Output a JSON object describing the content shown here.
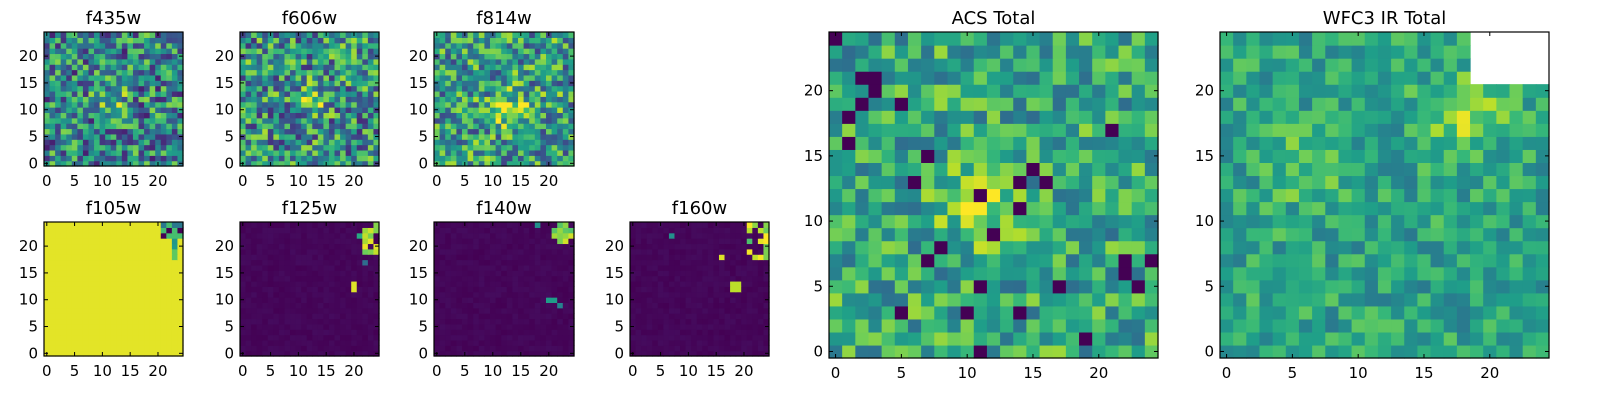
{
  "figure": {
    "panels": [
      {
        "id": "f435w",
        "title": "f435w",
        "xticks": [
          "0",
          "5",
          "10",
          "15",
          "20"
        ],
        "yticks": [
          "0",
          "5",
          "10",
          "15",
          "20"
        ]
      },
      {
        "id": "f606w",
        "title": "f606w",
        "xticks": [
          "0",
          "5",
          "10",
          "15",
          "20"
        ],
        "yticks": [
          "0",
          "5",
          "10",
          "15",
          "20"
        ]
      },
      {
        "id": "f814w",
        "title": "f814w",
        "xticks": [
          "0",
          "5",
          "10",
          "15",
          "20"
        ],
        "yticks": [
          "0",
          "5",
          "10",
          "15",
          "20"
        ]
      },
      {
        "id": "f105w",
        "title": "f105w",
        "xticks": [
          "0",
          "5",
          "10",
          "15",
          "20"
        ],
        "yticks": [
          "0",
          "5",
          "10",
          "15",
          "20"
        ]
      },
      {
        "id": "f125w",
        "title": "f125w",
        "xticks": [
          "0",
          "5",
          "10",
          "15",
          "20"
        ],
        "yticks": [
          "0",
          "5",
          "10",
          "15",
          "20"
        ]
      },
      {
        "id": "f140w",
        "title": "f140w",
        "xticks": [
          "0",
          "5",
          "10",
          "15",
          "20"
        ],
        "yticks": [
          "0",
          "5",
          "10",
          "15",
          "20"
        ]
      },
      {
        "id": "f160w",
        "title": "f160w",
        "xticks": [
          "0",
          "5",
          "10",
          "15",
          "20"
        ],
        "yticks": [
          "0",
          "5",
          "10",
          "15",
          "20"
        ]
      },
      {
        "id": "acs_total",
        "title": "ACS Total",
        "xticks": [
          "0",
          "5",
          "10",
          "15",
          "20"
        ],
        "yticks": [
          "0",
          "5",
          "10",
          "15",
          "20"
        ]
      },
      {
        "id": "wfc3_total",
        "title": "WFC3 IR Total",
        "xticks": [
          "0",
          "5",
          "10",
          "15",
          "20"
        ],
        "yticks": [
          "0",
          "5",
          "10",
          "15",
          "20"
        ]
      }
    ]
  },
  "chart_data": [
    {
      "type": "heatmap",
      "title": "f435w",
      "grid_size": [
        25,
        25
      ],
      "xlim": [
        -0.5,
        24.5
      ],
      "ylim": [
        -0.5,
        24.5
      ],
      "colormap": "viridis",
      "pattern": "noise"
    },
    {
      "type": "heatmap",
      "title": "f606w",
      "grid_size": [
        25,
        25
      ],
      "xlim": [
        -0.5,
        24.5
      ],
      "ylim": [
        -0.5,
        24.5
      ],
      "colormap": "viridis",
      "pattern": "noise with bright blob near (12, 12)"
    },
    {
      "type": "heatmap",
      "title": "f814w",
      "grid_size": [
        25,
        25
      ],
      "xlim": [
        -0.5,
        24.5
      ],
      "ylim": [
        -0.5,
        24.5
      ],
      "colormap": "viridis",
      "pattern": "noise with bright blob near (13, 10)"
    },
    {
      "type": "heatmap",
      "title": "f105w",
      "grid_size": [
        25,
        25
      ],
      "xlim": [
        -0.5,
        24.5
      ],
      "ylim": [
        -0.5,
        24.5
      ],
      "colormap": "viridis",
      "pattern": "uniform yellow, mixed pixels in top-right corner"
    },
    {
      "type": "heatmap",
      "title": "f125w",
      "grid_size": [
        25,
        25
      ],
      "xlim": [
        -0.5,
        24.5
      ],
      "ylim": [
        -0.5,
        24.5
      ],
      "colormap": "viridis",
      "pattern": "uniform dark, bright pixels in top-right corner and near (20, 12)"
    },
    {
      "type": "heatmap",
      "title": "f140w",
      "grid_size": [
        25,
        25
      ],
      "xlim": [
        -0.5,
        24.5
      ],
      "ylim": [
        -0.5,
        24.5
      ],
      "colormap": "viridis",
      "pattern": "uniform dark, bright pixels in top-right corner and near (22, 9)"
    },
    {
      "type": "heatmap",
      "title": "f160w",
      "grid_size": [
        25,
        25
      ],
      "xlim": [
        -0.5,
        24.5
      ],
      "ylim": [
        -0.5,
        24.5
      ],
      "colormap": "viridis",
      "pattern": "uniform dark, bright pixels in top-right corner and near (18, 12)"
    },
    {
      "type": "heatmap",
      "title": "ACS Total",
      "grid_size": [
        25,
        25
      ],
      "xlim": [
        -0.5,
        24.5
      ],
      "ylim": [
        -0.5,
        24.5
      ],
      "colormap": "viridis",
      "pattern": "green noise with bright blob near (11, 11)"
    },
    {
      "type": "heatmap",
      "title": "WFC3 IR Total",
      "grid_size": [
        25,
        25
      ],
      "xlim": [
        -0.5,
        24.5
      ],
      "ylim": [
        -0.5,
        24.5
      ],
      "colormap": "viridis",
      "pattern": "smooth green with white masked top-right corner"
    }
  ]
}
